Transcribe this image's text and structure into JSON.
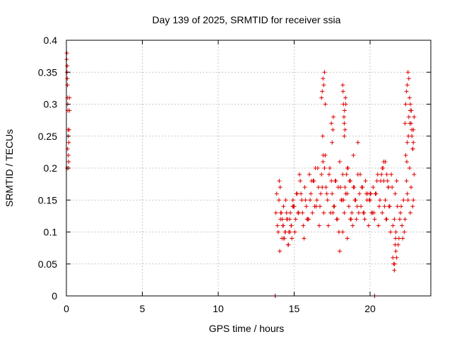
{
  "chart_data": {
    "type": "scatter",
    "title": "Day 139 of 2025, SRMTID for receiver ssia",
    "xlabel": "GPS time / hours",
    "ylabel": "SRMTID / TECUs",
    "xlim": [
      0,
      24
    ],
    "ylim": [
      0,
      0.4
    ],
    "x_ticks": [
      0,
      5,
      10,
      15,
      20
    ],
    "y_ticks": [
      0,
      0.05,
      0.1,
      0.15,
      0.2,
      0.25,
      0.3,
      0.35,
      0.4
    ],
    "x_tick_labels": [
      "0",
      "5",
      "10",
      "15",
      "20"
    ],
    "y_tick_labels": [
      "0",
      "0.05",
      "0.1",
      "0.15",
      "0.2",
      "0.25",
      "0.3",
      "0.35",
      "0.4"
    ],
    "grid": true,
    "marker": "+",
    "series": [
      {
        "name": "SRMTID",
        "color": "#e00000",
        "x": [
          0.02,
          0.03,
          0.04,
          0.05,
          0.06,
          0.07,
          0.08,
          0.09,
          0.1,
          0.11,
          0.12,
          0.13,
          0.14,
          0.15,
          0.16,
          0.18,
          0.2,
          0.2,
          0.05,
          0.08,
          13.75,
          13.75,
          20.3,
          20.3,
          13.8,
          13.9,
          14.0,
          14.1,
          14.2,
          14.3,
          14.4,
          14.5,
          14.6,
          14.7,
          14.8,
          14.9,
          13.85,
          13.95,
          14.05,
          14.15,
          14.25,
          14.35,
          14.45,
          14.55,
          14.65,
          14.75,
          14.85,
          14.95,
          14.02,
          14.22,
          14.42,
          14.62,
          14.82,
          14.12,
          14.32,
          14.52,
          14.72,
          14.92,
          14.08,
          14.28,
          15.0,
          15.1,
          15.2,
          15.3,
          15.4,
          15.5,
          15.6,
          15.7,
          15.8,
          15.9,
          16.0,
          16.1,
          16.2,
          16.3,
          16.4,
          16.5,
          16.6,
          16.7,
          16.8,
          16.9,
          15.05,
          15.25,
          15.45,
          15.65,
          15.85,
          16.05,
          16.25,
          16.45,
          16.65,
          16.85,
          15.15,
          15.35,
          15.55,
          15.75,
          15.95,
          16.15,
          16.35,
          16.55,
          16.75,
          16.95,
          16.8,
          16.85,
          16.9,
          16.95,
          17.0,
          17.05,
          16.88,
          16.92,
          17.0,
          17.1,
          17.2,
          17.3,
          17.4,
          17.5,
          17.6,
          17.7,
          17.8,
          17.9,
          18.0,
          18.1,
          18.2,
          18.3,
          18.4,
          18.5,
          17.05,
          17.25,
          17.45,
          17.65,
          17.85,
          18.05,
          18.25,
          18.45,
          17.15,
          17.35,
          17.55,
          17.75,
          17.95,
          18.15,
          18.35,
          17.45,
          17.5,
          17.55,
          17.58,
          18.2,
          18.22,
          18.25,
          18.28,
          18.3,
          18.32,
          18.35,
          18.38,
          18.4,
          18.3,
          18.5,
          18.6,
          18.7,
          18.8,
          18.9,
          19.0,
          19.1,
          19.2,
          19.3,
          19.4,
          19.5,
          19.6,
          19.7,
          19.8,
          19.9,
          20.0,
          18.55,
          18.75,
          18.95,
          19.15,
          19.35,
          19.55,
          19.75,
          19.95,
          18.65,
          18.85,
          19.05,
          19.25,
          19.45,
          19.65,
          19.85,
          18.0,
          18.2,
          18.5,
          18.7,
          18.9,
          19.2,
          20.0,
          20.1,
          20.2,
          20.3,
          20.4,
          20.5,
          20.6,
          20.7,
          20.8,
          20.9,
          21.0,
          21.1,
          21.2,
          21.3,
          21.4,
          21.5,
          20.05,
          20.25,
          20.45,
          20.65,
          20.85,
          21.05,
          21.25,
          21.45,
          20.15,
          20.35,
          20.55,
          20.75,
          20.95,
          21.15,
          21.35,
          20.8,
          20.9,
          21.0,
          21.1,
          21.2,
          21.5,
          21.55,
          21.6,
          21.65,
          21.7,
          21.75,
          21.62,
          21.68,
          21.6,
          21.7,
          21.8,
          21.9,
          22.0,
          22.1,
          22.2,
          22.3,
          21.65,
          21.85,
          22.05,
          22.25,
          21.75,
          21.95,
          22.15,
          22.3,
          22.35,
          22.4,
          22.45,
          22.5,
          22.55,
          22.6,
          22.65,
          22.7,
          22.75,
          22.8,
          22.85,
          22.9,
          22.35,
          22.45,
          22.55,
          22.65,
          22.75,
          22.85,
          22.42,
          22.52,
          22.62,
          22.72,
          22.82,
          22.4,
          22.5,
          22.6,
          22.7,
          22.8,
          22.9,
          22.45,
          22.65,
          22.85
        ],
        "y": [
          0.37,
          0.38,
          0.35,
          0.36,
          0.34,
          0.33,
          0.31,
          0.3,
          0.29,
          0.26,
          0.25,
          0.22,
          0.2,
          0.21,
          0.24,
          0.26,
          0.29,
          0.31,
          0.2,
          0.23,
          0.0,
          0.0,
          0.0,
          0.0,
          0.13,
          0.11,
          0.15,
          0.12,
          0.09,
          0.14,
          0.1,
          0.13,
          0.08,
          0.12,
          0.11,
          0.14,
          0.16,
          0.1,
          0.07,
          0.13,
          0.11,
          0.09,
          0.15,
          0.12,
          0.1,
          0.13,
          0.09,
          0.14,
          0.18,
          0.12,
          0.1,
          0.08,
          0.11,
          0.13,
          0.09,
          0.12,
          0.1,
          0.15,
          0.17,
          0.11,
          0.14,
          0.12,
          0.16,
          0.13,
          0.18,
          0.15,
          0.11,
          0.17,
          0.14,
          0.12,
          0.19,
          0.16,
          0.13,
          0.18,
          0.2,
          0.15,
          0.17,
          0.14,
          0.19,
          0.21,
          0.1,
          0.13,
          0.16,
          0.09,
          0.12,
          0.15,
          0.18,
          0.14,
          0.11,
          0.17,
          0.16,
          0.19,
          0.13,
          0.15,
          0.12,
          0.18,
          0.14,
          0.2,
          0.16,
          0.13,
          0.31,
          0.32,
          0.34,
          0.33,
          0.35,
          0.3,
          0.25,
          0.22,
          0.2,
          0.17,
          0.15,
          0.19,
          0.13,
          0.16,
          0.14,
          0.18,
          0.12,
          0.17,
          0.21,
          0.15,
          0.19,
          0.13,
          0.16,
          0.2,
          0.22,
          0.11,
          0.18,
          0.14,
          0.12,
          0.17,
          0.15,
          0.19,
          0.16,
          0.2,
          0.13,
          0.18,
          0.1,
          0.15,
          0.17,
          0.27,
          0.24,
          0.26,
          0.28,
          0.33,
          0.32,
          0.3,
          0.28,
          0.27,
          0.29,
          0.26,
          0.31,
          0.3,
          0.25,
          0.16,
          0.14,
          0.18,
          0.13,
          0.17,
          0.15,
          0.12,
          0.19,
          0.16,
          0.14,
          0.17,
          0.13,
          0.18,
          0.15,
          0.11,
          0.16,
          0.2,
          0.12,
          0.17,
          0.14,
          0.19,
          0.13,
          0.16,
          0.15,
          0.18,
          0.11,
          0.15,
          0.13,
          0.17,
          0.12,
          0.16,
          0.07,
          0.1,
          0.09,
          0.12,
          0.22,
          0.24,
          0.15,
          0.13,
          0.17,
          0.12,
          0.16,
          0.19,
          0.14,
          0.18,
          0.13,
          0.21,
          0.15,
          0.12,
          0.17,
          0.14,
          0.19,
          0.11,
          0.16,
          0.13,
          0.18,
          0.15,
          0.2,
          0.12,
          0.14,
          0.17,
          0.13,
          0.16,
          0.11,
          0.19,
          0.14,
          0.18,
          0.1,
          0.2,
          0.18,
          0.21,
          0.19,
          0.17,
          0.06,
          0.05,
          0.04,
          0.08,
          0.07,
          0.06,
          0.05,
          0.09,
          0.12,
          0.1,
          0.14,
          0.09,
          0.13,
          0.11,
          0.15,
          0.12,
          0.16,
          0.08,
          0.14,
          0.1,
          0.18,
          0.12,
          0.09,
          0.27,
          0.3,
          0.32,
          0.33,
          0.35,
          0.34,
          0.31,
          0.29,
          0.27,
          0.25,
          0.23,
          0.26,
          0.28,
          0.22,
          0.24,
          0.28,
          0.3,
          0.26,
          0.24,
          0.21,
          0.25,
          0.27,
          0.29,
          0.23,
          0.18,
          0.15,
          0.2,
          0.17,
          0.14,
          0.19,
          0.16,
          0.13,
          0.15
        ]
      }
    ]
  }
}
